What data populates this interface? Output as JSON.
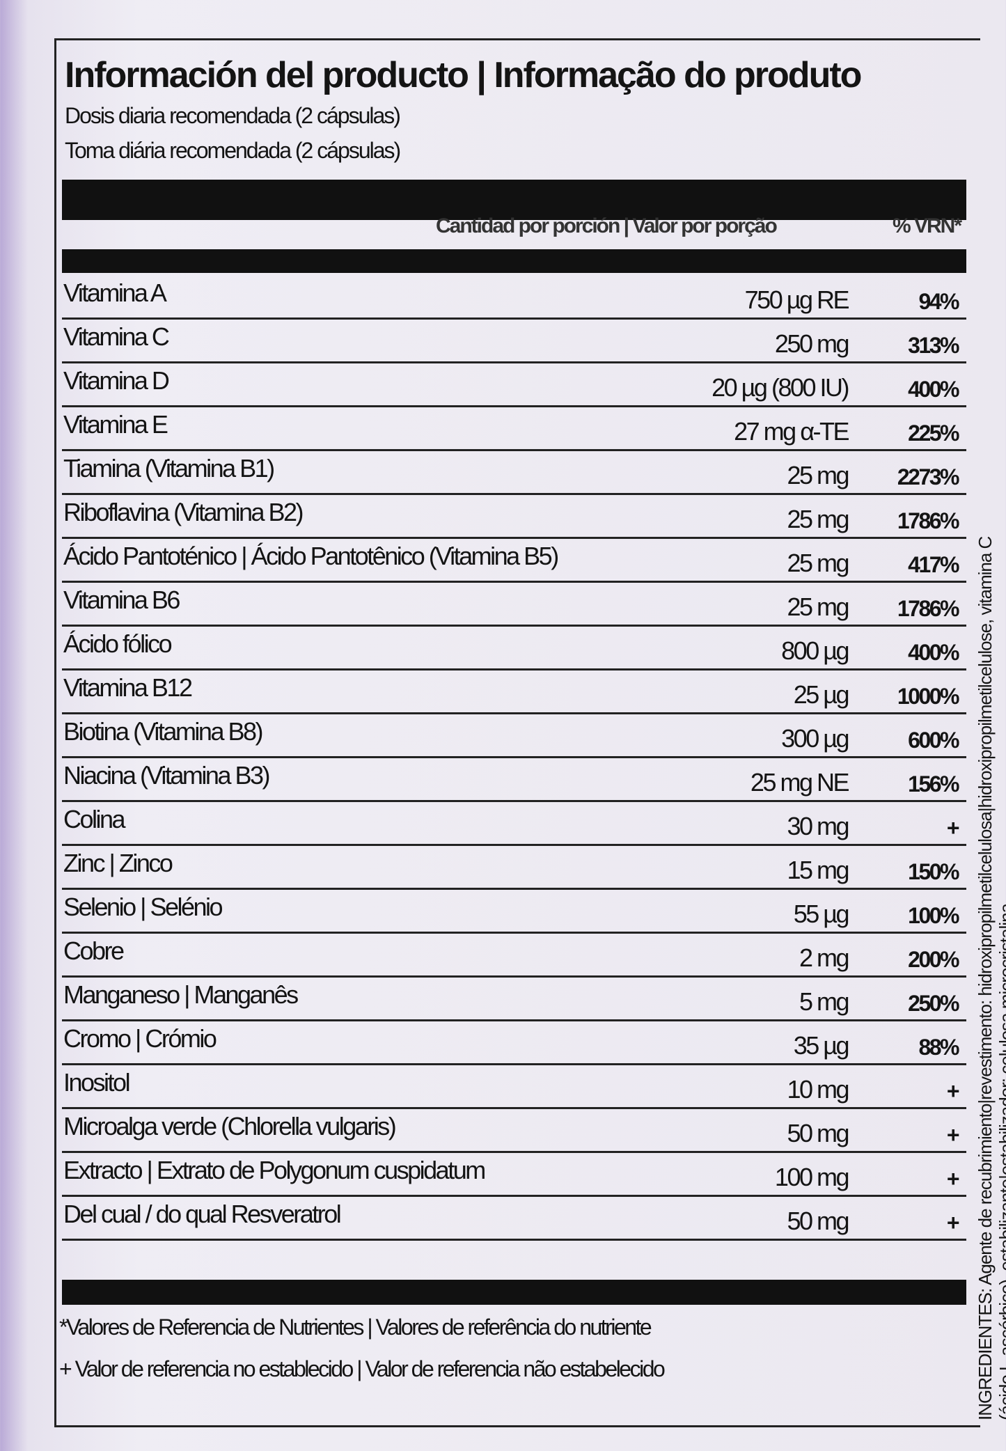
{
  "header": {
    "title": "Información del producto | Informação do produto",
    "dose_es": "Dosis diaria recomendada (2 cápsulas)",
    "dose_pt": "Toma diária recomendada (2 cápsulas)"
  },
  "table": {
    "columns": [
      "Cantidad por porción | Valor por porção",
      "% VRN*"
    ],
    "rows": [
      [
        "Vitamina A",
        "750 µg RE",
        "94%"
      ],
      [
        "Vitamina C",
        "250 mg",
        "313%"
      ],
      [
        "Vitamina D",
        "20 µg (800 IU)",
        "400%"
      ],
      [
        "Vitamina E",
        "27 mg α-TE",
        "225%"
      ],
      [
        "Tiamina (Vitamina B1)",
        "25 mg",
        "2273%"
      ],
      [
        "Riboflavina (Vitamina B2)",
        "25 mg",
        "1786%"
      ],
      [
        "Ácido Pantoténico | Ácido Pantotênico (Vitamina B5)",
        "25 mg",
        "417%"
      ],
      [
        "Vitamina B6",
        "25 mg",
        "1786%"
      ],
      [
        "Ácido fólico",
        "800 µg",
        "400%"
      ],
      [
        "Vitamina B12",
        "25 µg",
        "1000%"
      ],
      [
        "Biotina (Vitamina B8)",
        "300 µg",
        "600%"
      ],
      [
        "Niacina (Vitamina B3)",
        "25 mg NE",
        "156%"
      ],
      [
        "Colina",
        "30 mg",
        "+"
      ],
      [
        "Zinc | Zinco",
        "15 mg",
        "150%"
      ],
      [
        "Selenio | Selénio",
        "55 µg",
        "100%"
      ],
      [
        "Cobre",
        "2 mg",
        "200%"
      ],
      [
        "Manganeso | Manganês",
        "5 mg",
        "250%"
      ],
      [
        "Cromo | Crómio",
        "35 µg",
        "88%"
      ],
      [
        "Inositol",
        "10 mg",
        "+"
      ],
      [
        "Microalga verde (Chlorella vulgaris)",
        "50 mg",
        "+"
      ],
      [
        "Extracto | Extrato de Polygonum cuspidatum",
        "100 mg",
        "+"
      ],
      [
        "Del cual / do qual Resveratrol",
        "50 mg",
        "+"
      ]
    ]
  },
  "footnotes": [
    "*Valores de Referencia de Nutrientes | Valores de referência do nutriente",
    "+ Valor de referencia no establecido | Valor de referencia não estabelecido"
  ],
  "side": {
    "ingredients_1": "INGREDIENTES: Agente de recubrimiento|revestimento: hidroxipropilmetilcelulosa|hidroxipropilmetilcelulose, vitamina C",
    "ingredients_2": "(ácido L-ascórbico), estabilizante|estabilizador: celulosa microcristalina"
  }
}
